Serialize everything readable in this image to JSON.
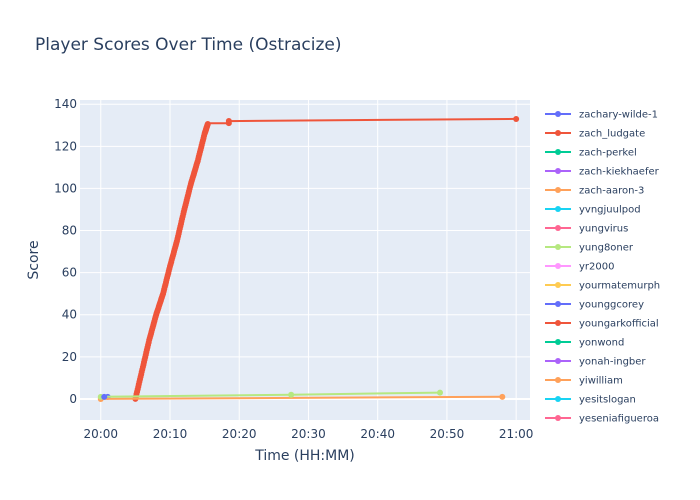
{
  "chart_data": {
    "type": "line",
    "title": "Player Scores Over Time (Ostracize)",
    "xlabel": "Time (HH:MM)",
    "ylabel": "Score",
    "xlim": [
      "19:57",
      "21:02"
    ],
    "ylim": [
      -10,
      142
    ],
    "x_ticks": [
      "20:00",
      "20:10",
      "20:20",
      "20:30",
      "20:40",
      "20:50",
      "21:00"
    ],
    "y_ticks": [
      0,
      20,
      40,
      60,
      80,
      100,
      120,
      140
    ],
    "grid": true,
    "legend_position": "right",
    "series": [
      {
        "name": "zachary-wilde-1",
        "color": "#636efa",
        "points": [
          [
            "20:01",
            1
          ]
        ]
      },
      {
        "name": "zach_ludgate",
        "color": "#ef553b",
        "points": [
          [
            "20:05",
            0
          ],
          [
            "20:06",
            14
          ],
          [
            "20:07",
            28
          ],
          [
            "20:08",
            40
          ],
          [
            "20:09",
            50
          ],
          [
            "20:10",
            63
          ],
          [
            "20:11",
            75
          ],
          [
            "20:12",
            89
          ],
          [
            "20:13",
            102
          ],
          [
            "20:14",
            113
          ],
          [
            "20:15",
            126
          ],
          [
            "20:15.5",
            131
          ],
          [
            "20:18.5",
            131
          ],
          [
            "20:18.5",
            132
          ],
          [
            "21:00",
            133
          ]
        ]
      },
      {
        "name": "zach-perkel",
        "color": "#00cc96",
        "points": []
      },
      {
        "name": "zach-kiekhaefer",
        "color": "#ab63fa",
        "points": []
      },
      {
        "name": "zach-aaron-3",
        "color": "#ffa15a",
        "points": [
          [
            "20:00",
            0
          ],
          [
            "20:58",
            1
          ]
        ]
      },
      {
        "name": "yvngjuulpod",
        "color": "#19d3f3",
        "points": []
      },
      {
        "name": "yungvirus",
        "color": "#ff6692",
        "points": []
      },
      {
        "name": "yung8oner",
        "color": "#b6e880",
        "points": [
          [
            "20:00",
            1
          ],
          [
            "20:27.5",
            2
          ],
          [
            "20:49",
            3
          ]
        ]
      },
      {
        "name": "yr2000",
        "color": "#ff97ff",
        "points": []
      },
      {
        "name": "yourmatemurph",
        "color": "#fecb52",
        "points": []
      },
      {
        "name": "younggcorey",
        "color": "#636efa",
        "points": [
          [
            "20:00.5",
            1
          ]
        ]
      },
      {
        "name": "youngarkofficial",
        "color": "#ef553b",
        "points": []
      },
      {
        "name": "yonwond",
        "color": "#00cc96",
        "points": []
      },
      {
        "name": "yonah-ingber",
        "color": "#ab63fa",
        "points": []
      },
      {
        "name": "yiwilliam",
        "color": "#ffa15a",
        "points": []
      },
      {
        "name": "yesitslogan",
        "color": "#19d3f3",
        "points": []
      },
      {
        "name": "yeseniafigueroa",
        "color": "#ff6692",
        "points": []
      }
    ]
  }
}
